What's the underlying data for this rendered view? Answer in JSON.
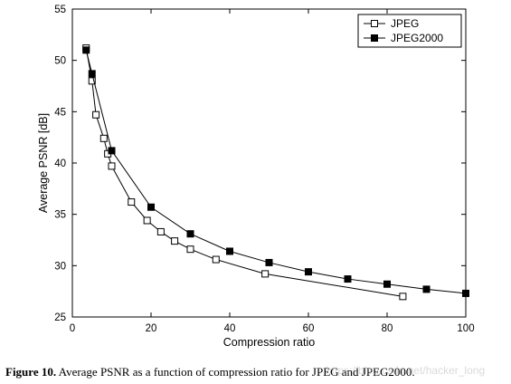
{
  "chart_data": {
    "type": "line",
    "xlabel": "Compression ratio",
    "ylabel": "Average PSNR [dB]",
    "xlim": [
      0,
      100
    ],
    "ylim": [
      25,
      55
    ],
    "x_ticks": [
      0,
      20,
      40,
      60,
      80,
      100
    ],
    "y_ticks": [
      25,
      30,
      35,
      40,
      45,
      50,
      55
    ],
    "grid": false,
    "legend_position": "top-right",
    "series": [
      {
        "name": "JPEG",
        "marker": "open-square",
        "color": "#000000",
        "x": [
          3.5,
          5,
          6,
          8,
          9,
          10,
          15,
          19,
          22.5,
          26,
          30,
          36.5,
          49,
          84
        ],
        "y": [
          51.2,
          48.0,
          44.7,
          42.4,
          40.9,
          39.7,
          36.2,
          34.4,
          33.3,
          32.4,
          31.6,
          30.6,
          29.2,
          27.0
        ]
      },
      {
        "name": "JPEG2000",
        "marker": "filled-square",
        "color": "#000000",
        "x": [
          3.5,
          5,
          10,
          20,
          30,
          40,
          50,
          60,
          70,
          80,
          90,
          100
        ],
        "y": [
          51.0,
          48.7,
          41.2,
          35.7,
          33.1,
          31.4,
          30.3,
          29.4,
          28.7,
          28.2,
          27.7,
          27.3
        ]
      }
    ]
  },
  "caption": {
    "label": "Figure 10.",
    "text": "Average PSNR as a function of compression ratio for JPEG and JPEG2000."
  },
  "watermark": "https://blog.csdn.net/hacker_long"
}
